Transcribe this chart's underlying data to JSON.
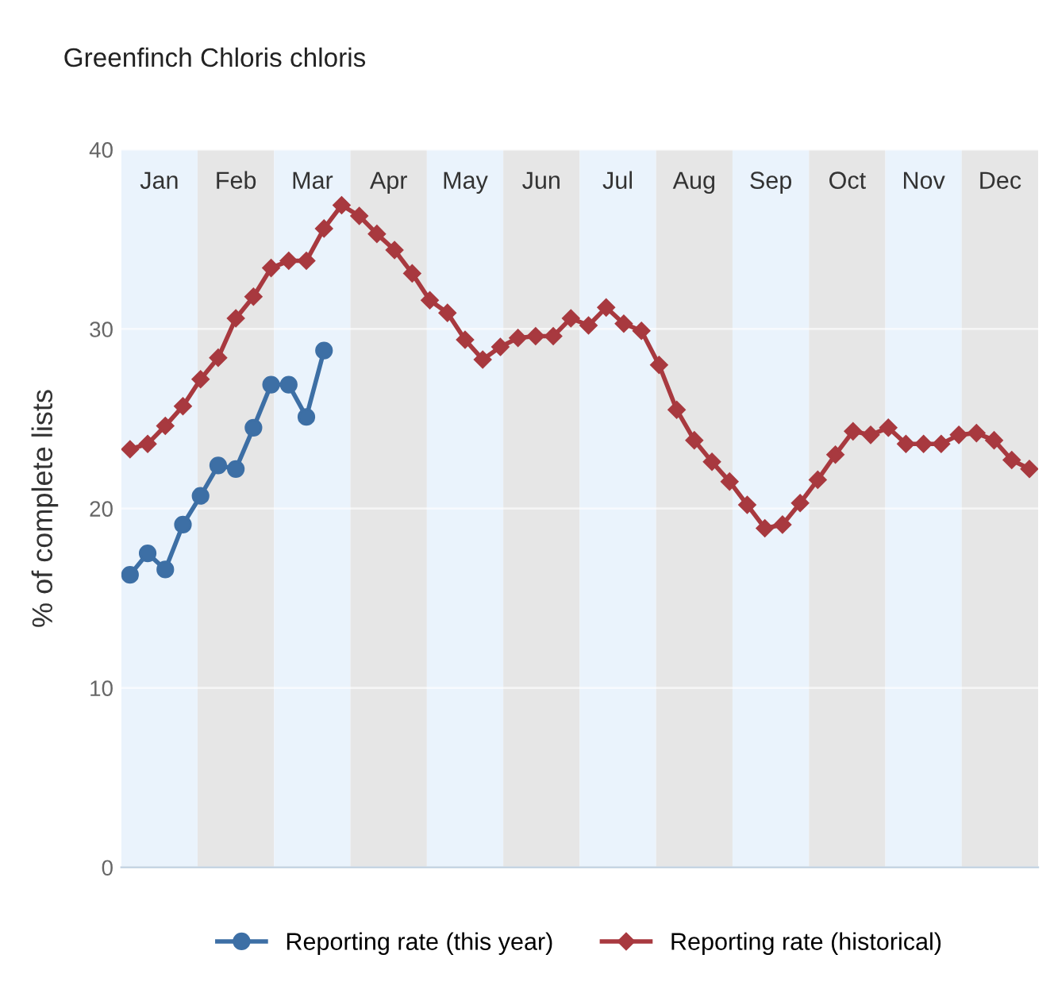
{
  "chart_data": {
    "type": "line",
    "title": "Greenfinch Chloris chloris",
    "ylabel": "% of complete lists",
    "categories": [
      null,
      null,
      null,
      null,
      null,
      null,
      null,
      null,
      null,
      null,
      null,
      null,
      null,
      null,
      null,
      null,
      null,
      null,
      null,
      null,
      null,
      null,
      null,
      null,
      null,
      null,
      null,
      null,
      null,
      null,
      null,
      null,
      null,
      null,
      null,
      null,
      null,
      null,
      null,
      null,
      null,
      null,
      null,
      null,
      null,
      null,
      null,
      null,
      null,
      null,
      null,
      null
    ],
    "ylim": [
      0,
      40
    ],
    "yticks": [
      0,
      10,
      20,
      30,
      40
    ],
    "grid": "y",
    "legend": "bottom",
    "series": [
      {
        "name": "Reporting rate (this year)",
        "color": "#3d6fa5",
        "marker": "circle",
        "values": [
          16.3,
          17.5,
          16.6,
          19.1,
          20.7,
          22.4,
          22.2,
          24.5,
          26.9,
          26.9,
          25.1,
          28.8,
          null,
          null,
          null,
          null,
          null,
          null,
          null,
          null,
          null,
          null,
          null,
          null,
          null,
          null,
          null,
          null,
          null,
          null,
          null,
          null,
          null,
          null,
          null,
          null,
          null,
          null,
          null,
          null,
          null,
          null,
          null,
          null,
          null,
          null,
          null,
          null,
          null,
          null,
          null,
          null
        ]
      },
      {
        "name": "Reporting rate (historical)",
        "color": "#a8393f",
        "marker": "diamond",
        "values": [
          23.3,
          23.6,
          24.6,
          25.7,
          27.2,
          28.4,
          30.6,
          31.8,
          33.4,
          33.8,
          33.8,
          35.6,
          36.9,
          36.3,
          35.3,
          34.4,
          33.1,
          31.6,
          30.9,
          29.4,
          28.3,
          29.0,
          29.5,
          29.6,
          29.6,
          30.6,
          30.2,
          31.2,
          30.3,
          29.9,
          28.0,
          25.5,
          23.8,
          22.6,
          21.5,
          20.2,
          18.9,
          19.1,
          20.3,
          21.6,
          23.0,
          24.3,
          24.1,
          24.5,
          23.6,
          23.6,
          23.6,
          24.1,
          24.2,
          23.8,
          22.7,
          22.2
        ]
      }
    ],
    "annotations": [
      "Jan",
      "Feb",
      "Mar",
      "Apr",
      "May",
      "Jun",
      "Jul",
      "Aug",
      "Sep",
      "Oct",
      "Nov",
      "Dec"
    ]
  }
}
